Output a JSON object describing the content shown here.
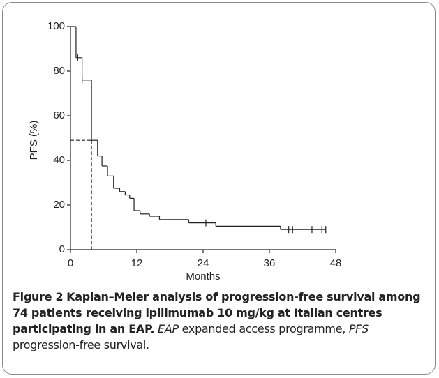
{
  "chart_data": {
    "type": "step",
    "ylabel": "PFS (%)",
    "xlabel": "Months",
    "xlim": [
      0,
      48
    ],
    "xticks": [
      0,
      12,
      24,
      36,
      48
    ],
    "ylim": [
      0,
      100
    ],
    "yticks": [
      0,
      20,
      40,
      60,
      80,
      100
    ],
    "color": "#222222",
    "x": [
      0,
      1.0,
      2.1,
      3.8,
      4.9,
      5.7,
      6.7,
      7.8,
      8.9,
      9.9,
      10.7,
      11.5,
      12.6,
      14.3,
      16.1,
      21.4,
      26.3,
      38.0
    ],
    "series": [
      {
        "values": [
          100,
          86,
          76,
          49,
          42,
          37.5,
          33,
          27.5,
          26,
          24.5,
          23,
          17.5,
          16,
          15,
          13.5,
          12,
          10.5,
          9
        ]
      }
    ],
    "censored": {
      "x": [
        1.3,
        2.1,
        24.5,
        39.5,
        40.2,
        43.7,
        45.5,
        46.2
      ],
      "values": [
        86,
        76,
        12,
        9,
        9,
        9,
        9,
        9
      ]
    },
    "median": {
      "x": 3.8,
      "y": 49
    }
  },
  "caption": {
    "label": "Figure 2",
    "title": "Kaplan–Meier analysis of progression-free survival among 74 patients receiving ipilimumab 10 mg/kg at Italian centres participating in an EAP.",
    "abbreviations": [
      {
        "term": "EAP",
        "definition": "expanded access programme,"
      },
      {
        "term": "PFS",
        "definition": "progression-free survival."
      }
    ]
  }
}
